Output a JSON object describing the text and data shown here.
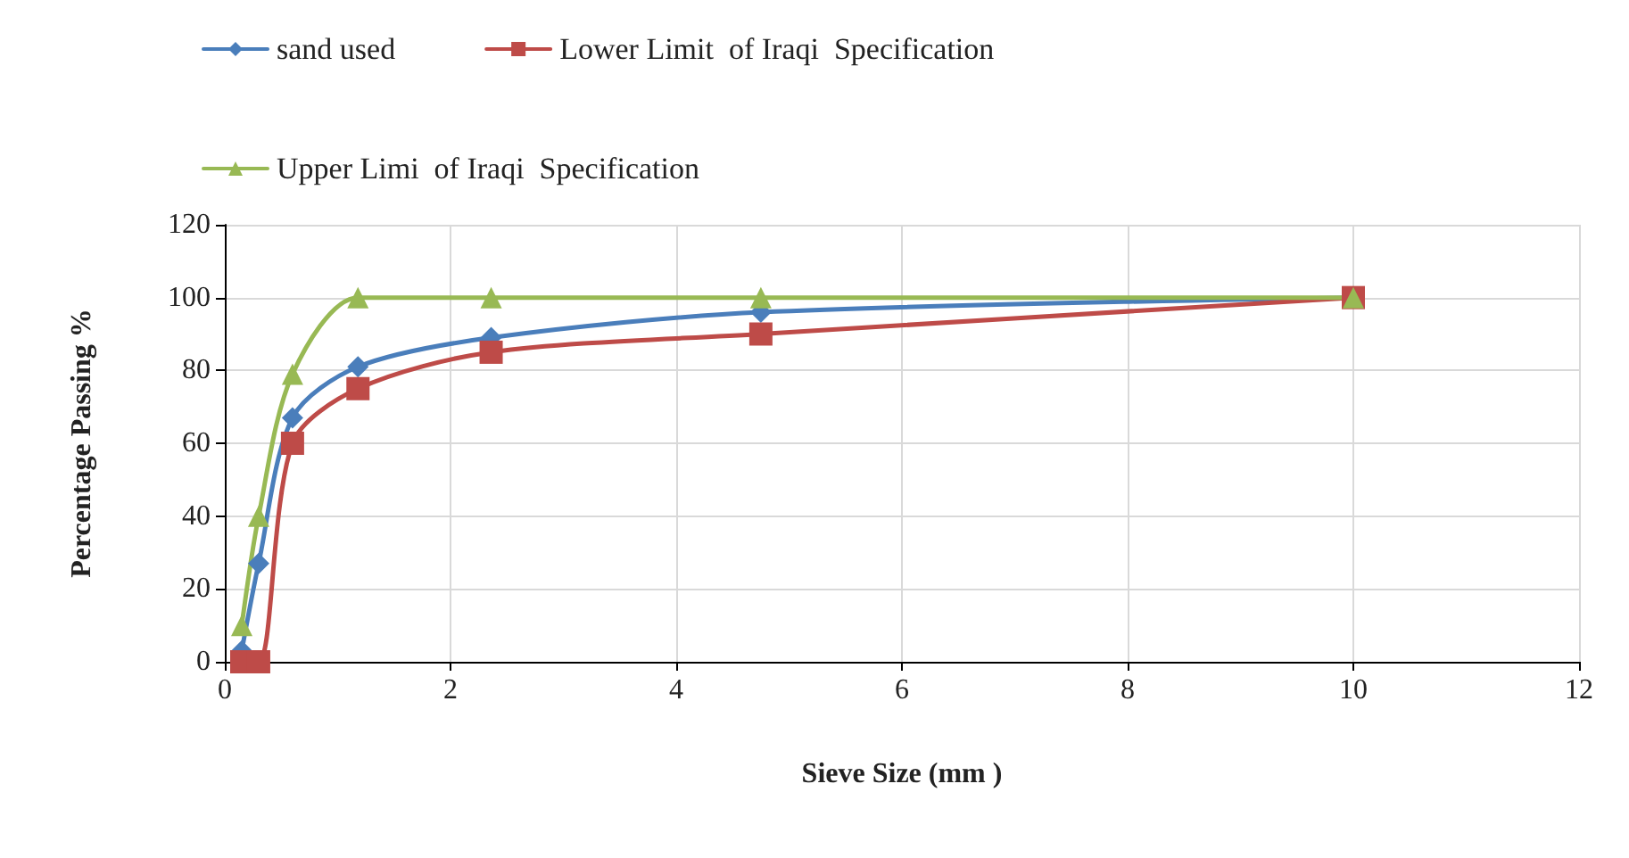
{
  "chart_data": {
    "type": "line",
    "xlabel": "Sieve Size (mm )",
    "ylabel": "Percentage Passing %",
    "xlim": [
      0,
      12
    ],
    "xticks": [
      0,
      2,
      4,
      6,
      8,
      10,
      12
    ],
    "ylim": [
      0,
      120
    ],
    "yticks": [
      0,
      20,
      40,
      60,
      80,
      100,
      120
    ],
    "grid": true,
    "legend": "top",
    "x": [
      0.15,
      0.3,
      0.6,
      1.18,
      2.36,
      4.75,
      10
    ],
    "series": [
      {
        "name": "sand used",
        "color": "#4a7ebb",
        "marker": "diamond",
        "values": [
          3,
          27,
          67,
          81,
          89,
          96,
          100
        ]
      },
      {
        "name": "Lower Limit  of Iraqi  Specification",
        "color": "#be4b48",
        "marker": "square",
        "values": [
          0,
          0,
          60,
          75,
          85,
          90,
          100
        ]
      },
      {
        "name": "Upper Limi  of Iraqi  Specification",
        "color": "#98b954",
        "marker": "triangle",
        "values": [
          10,
          40,
          79,
          100,
          100,
          100,
          100
        ]
      }
    ]
  }
}
